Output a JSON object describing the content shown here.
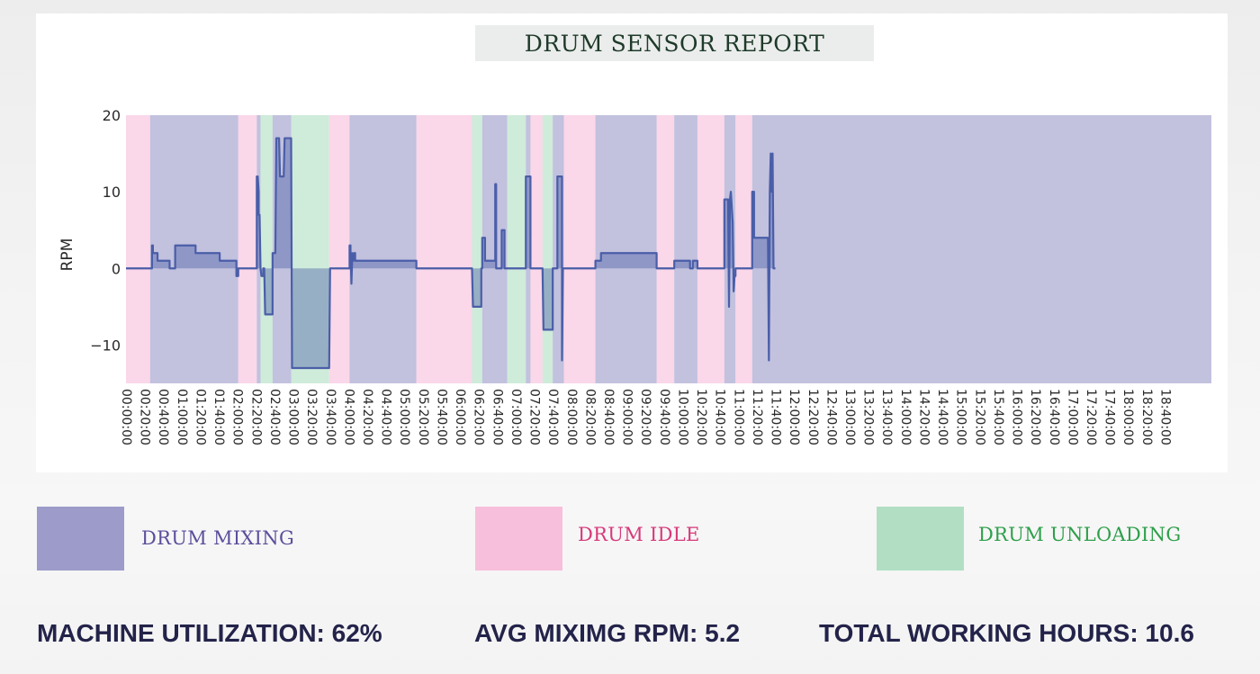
{
  "colors": {
    "mixing": "#9c9bca",
    "idle": "#f7bfdb",
    "unloading": "#b2dfc4",
    "line": "#4a5ea8",
    "mixing_label": "#5a4f9c",
    "idle_label": "#d6397a",
    "unloading_label": "#2e9f4a",
    "stats_text": "#23234a"
  },
  "legend": [
    {
      "key": "mixing",
      "label": "DRUM MIXING"
    },
    {
      "key": "idle",
      "label": "DRUM IDLE"
    },
    {
      "key": "unloading",
      "label": "DRUM UNLOADING"
    }
  ],
  "stats": {
    "utilization": "MACHINE UTILIZATION: 62%",
    "avg_rpm": "AVG MIXIMG RPM: 5.2",
    "total_hours": "TOTAL WORKING HOURS: 10.6"
  },
  "chart_data": {
    "type": "area",
    "title": "DRUM SENSOR REPORT",
    "xlabel": "",
    "ylabel": "RPM",
    "x_unit": "minutes since 00:00:00",
    "xlim": [
      0,
      1170
    ],
    "ylim": [
      -15,
      20
    ],
    "y_ticks": [
      -10,
      0,
      10,
      20
    ],
    "y_tick_labels": [
      "−10",
      "0",
      "10",
      "20"
    ],
    "x_ticks": [
      "00:00:00",
      "00:20:00",
      "00:40:00",
      "01:00:00",
      "01:20:00",
      "01:40:00",
      "02:00:00",
      "02:20:00",
      "02:40:00",
      "03:00:00",
      "03:20:00",
      "03:40:00",
      "04:00:00",
      "04:20:00",
      "04:40:00",
      "05:00:00",
      "05:20:00",
      "05:40:00",
      "06:00:00",
      "06:20:00",
      "06:40:00",
      "07:00:00",
      "07:20:00",
      "07:40:00",
      "08:00:00",
      "08:20:00",
      "08:40:00",
      "09:00:00",
      "09:20:00",
      "09:40:00",
      "10:00:00",
      "10:20:00",
      "10:40:00",
      "11:00:00",
      "11:20:00",
      "11:40:00",
      "12:00:00",
      "12:20:00",
      "12:40:00",
      "13:00:00",
      "13:20:00",
      "13:40:00",
      "14:00:00",
      "14:20:00",
      "14:40:00",
      "15:00:00",
      "15:20:00",
      "15:40:00",
      "16:00:00",
      "16:20:00",
      "16:40:00",
      "17:00:00",
      "17:20:00",
      "17:40:00",
      "18:00:00",
      "18:20:00",
      "18:40:00"
    ],
    "x_tick_minutes": [
      0,
      20,
      40,
      60,
      80,
      100,
      120,
      140,
      160,
      180,
      200,
      220,
      240,
      260,
      280,
      300,
      320,
      340,
      360,
      380,
      400,
      420,
      440,
      460,
      480,
      500,
      520,
      540,
      560,
      580,
      600,
      620,
      640,
      660,
      680,
      700,
      720,
      740,
      760,
      780,
      800,
      820,
      840,
      860,
      880,
      900,
      920,
      940,
      960,
      980,
      1000,
      1020,
      1040,
      1060,
      1080,
      1100,
      1120
    ],
    "grid": false,
    "states": [
      {
        "state": "idle",
        "start": 0,
        "end": 26
      },
      {
        "state": "mixing",
        "start": 26,
        "end": 121
      },
      {
        "state": "idle",
        "start": 121,
        "end": 141
      },
      {
        "state": "mixing",
        "start": 141,
        "end": 145
      },
      {
        "state": "unloading",
        "start": 145,
        "end": 158
      },
      {
        "state": "mixing",
        "start": 158,
        "end": 178
      },
      {
        "state": "unloading",
        "start": 178,
        "end": 219
      },
      {
        "state": "idle",
        "start": 219,
        "end": 241
      },
      {
        "state": "mixing",
        "start": 241,
        "end": 313
      },
      {
        "state": "idle",
        "start": 313,
        "end": 373
      },
      {
        "state": "unloading",
        "start": 373,
        "end": 384
      },
      {
        "state": "mixing",
        "start": 384,
        "end": 411
      },
      {
        "state": "unloading",
        "start": 411,
        "end": 431
      },
      {
        "state": "mixing",
        "start": 431,
        "end": 436
      },
      {
        "state": "idle",
        "start": 436,
        "end": 449
      },
      {
        "state": "unloading",
        "start": 449,
        "end": 460
      },
      {
        "state": "mixing",
        "start": 460,
        "end": 472
      },
      {
        "state": "idle",
        "start": 472,
        "end": 506
      },
      {
        "state": "mixing",
        "start": 506,
        "end": 572
      },
      {
        "state": "idle",
        "start": 572,
        "end": 591
      },
      {
        "state": "mixing",
        "start": 591,
        "end": 616
      },
      {
        "state": "idle",
        "start": 616,
        "end": 645
      },
      {
        "state": "mixing",
        "start": 645,
        "end": 657
      },
      {
        "state": "idle",
        "start": 657,
        "end": 675
      },
      {
        "state": "mixing",
        "start": 675,
        "end": 1170
      }
    ],
    "series": [
      {
        "name": "RPM",
        "points": [
          [
            0,
            0
          ],
          [
            28,
            0
          ],
          [
            28,
            3
          ],
          [
            29,
            3
          ],
          [
            29,
            2
          ],
          [
            34,
            2
          ],
          [
            34,
            1
          ],
          [
            47,
            1
          ],
          [
            47,
            0
          ],
          [
            53,
            0
          ],
          [
            53,
            3
          ],
          [
            75,
            3
          ],
          [
            75,
            2
          ],
          [
            101,
            2
          ],
          [
            101,
            1
          ],
          [
            119,
            1
          ],
          [
            119,
            -1
          ],
          [
            121,
            -1
          ],
          [
            121,
            0
          ],
          [
            141,
            0
          ],
          [
            141,
            12
          ],
          [
            142,
            12
          ],
          [
            143,
            10
          ],
          [
            143,
            7
          ],
          [
            144,
            7
          ],
          [
            145,
            0
          ],
          [
            146,
            -1
          ],
          [
            148,
            -1
          ],
          [
            148,
            0
          ],
          [
            149,
            0
          ],
          [
            150,
            -6
          ],
          [
            158,
            -6
          ],
          [
            158,
            2
          ],
          [
            161,
            2
          ],
          [
            162,
            17
          ],
          [
            165,
            17
          ],
          [
            166,
            12
          ],
          [
            170,
            12
          ],
          [
            171,
            17
          ],
          [
            177,
            17
          ],
          [
            178,
            17
          ],
          [
            179,
            -13
          ],
          [
            219,
            -13
          ],
          [
            220,
            0
          ],
          [
            241,
            0
          ],
          [
            241,
            3
          ],
          [
            242,
            3
          ],
          [
            242,
            2
          ],
          [
            243,
            -2
          ],
          [
            244,
            2
          ],
          [
            245,
            1
          ],
          [
            246,
            2
          ],
          [
            247,
            2
          ],
          [
            247,
            1
          ],
          [
            313,
            1
          ],
          [
            313,
            0
          ],
          [
            373,
            0
          ],
          [
            374,
            -5
          ],
          [
            383,
            -5
          ],
          [
            383,
            0
          ],
          [
            384,
            0
          ],
          [
            384,
            4
          ],
          [
            387,
            4
          ],
          [
            387,
            1
          ],
          [
            398,
            1
          ],
          [
            398,
            11
          ],
          [
            399,
            11
          ],
          [
            399,
            0
          ],
          [
            405,
            0
          ],
          [
            405,
            5
          ],
          [
            408,
            5
          ],
          [
            408,
            0
          ],
          [
            411,
            0
          ],
          [
            431,
            0
          ],
          [
            431,
            12
          ],
          [
            436,
            12
          ],
          [
            436,
            0
          ],
          [
            449,
            0
          ],
          [
            450,
            -8
          ],
          [
            460,
            -8
          ],
          [
            460,
            0
          ],
          [
            465,
            0
          ],
          [
            465,
            12
          ],
          [
            470,
            12
          ],
          [
            470,
            -12
          ],
          [
            471,
            0
          ],
          [
            472,
            0
          ],
          [
            506,
            0
          ],
          [
            506,
            1
          ],
          [
            512,
            1
          ],
          [
            512,
            2
          ],
          [
            572,
            2
          ],
          [
            572,
            0
          ],
          [
            591,
            0
          ],
          [
            591,
            1
          ],
          [
            608,
            1
          ],
          [
            608,
            0
          ],
          [
            611,
            0
          ],
          [
            611,
            1
          ],
          [
            616,
            1
          ],
          [
            616,
            0
          ],
          [
            645,
            0
          ],
          [
            645,
            9
          ],
          [
            649,
            9
          ],
          [
            650,
            -5
          ],
          [
            651,
            9
          ],
          [
            652,
            10
          ],
          [
            653,
            8
          ],
          [
            654,
            6
          ],
          [
            655,
            -3
          ],
          [
            656,
            -1
          ],
          [
            657,
            -1
          ],
          [
            657,
            0
          ],
          [
            675,
            0
          ],
          [
            675,
            10
          ],
          [
            677,
            10
          ],
          [
            677,
            4
          ],
          [
            692,
            4
          ],
          [
            693,
            -12
          ],
          [
            694,
            10
          ],
          [
            695,
            15
          ],
          [
            696,
            10
          ],
          [
            697,
            15
          ],
          [
            698,
            0
          ],
          [
            700,
            0
          ]
        ]
      }
    ]
  }
}
